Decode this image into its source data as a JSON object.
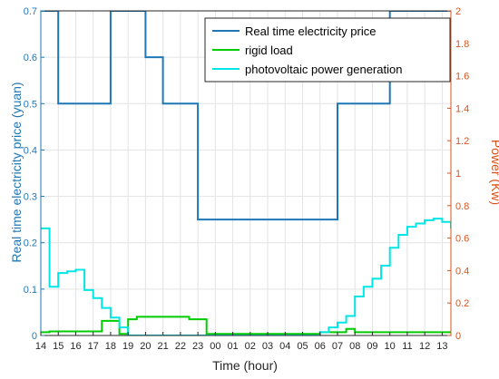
{
  "chart_data": {
    "type": "line",
    "xlabel": "Time (hour)",
    "ylabel_left": "Real time electricity price (yuan)",
    "ylabel_right": "Power (Kw)",
    "x_tick_labels": [
      "14",
      "15",
      "16",
      "17",
      "18",
      "19",
      "20",
      "21",
      "22",
      "23",
      "00",
      "01",
      "02",
      "03",
      "04",
      "05",
      "06",
      "07",
      "08",
      "09",
      "10",
      "11",
      "12",
      "13"
    ],
    "left_ticks": [
      "0",
      "0.1",
      "0.2",
      "0.3",
      "0.4",
      "0.5",
      "0.6",
      "0.7"
    ],
    "right_ticks": [
      "0",
      "0.2",
      "0.4",
      "0.6",
      "0.8",
      "1",
      "1.2",
      "1.4",
      "1.6",
      "1.8",
      "2"
    ],
    "ylim_left": [
      0,
      0.7
    ],
    "ylim_right": [
      0,
      2
    ],
    "grid": true,
    "legend_position": "top-right",
    "colors": {
      "price": "#1f77b4",
      "rigid": "#00cc00",
      "pv": "#00e5e5",
      "left_axis": "#1f77b4",
      "right_axis": "#d95319"
    },
    "series": [
      {
        "name": "Real time electricity price",
        "axis": "left",
        "step": true,
        "x": [
          14.0,
          15.0,
          16.0,
          17.0,
          18.0,
          18.5,
          19.0,
          20.0,
          21.0,
          22.0,
          23.0,
          0.0,
          1.0,
          2.0,
          3.0,
          4.0,
          5.0,
          6.0,
          7.0,
          8.0,
          9.0,
          10.0,
          11.0,
          12.0,
          13.0,
          13.5
        ],
        "values": [
          0.7,
          0.5,
          0.5,
          0.5,
          0.7,
          0.7,
          0.7,
          0.6,
          0.5,
          0.5,
          0.25,
          0.25,
          0.25,
          0.25,
          0.25,
          0.25,
          0.25,
          0.25,
          0.5,
          0.5,
          0.5,
          0.7,
          0.7,
          0.7,
          0.7,
          0.7
        ]
      },
      {
        "name": "rigid load",
        "axis": "right",
        "step": true,
        "x": [
          14.0,
          14.5,
          15.0,
          15.5,
          16.0,
          16.5,
          17.0,
          17.5,
          18.0,
          18.5,
          19.0,
          19.5,
          20.0,
          20.5,
          21.0,
          21.5,
          22.0,
          22.5,
          23.0,
          23.5,
          0.0,
          0.5,
          1.0,
          1.5,
          2.0,
          2.5,
          3.0,
          3.5,
          4.0,
          4.5,
          5.0,
          5.5,
          6.0,
          6.5,
          7.0,
          7.5,
          8.0,
          8.5,
          9.0,
          9.5,
          10.0,
          10.5,
          11.0,
          11.5,
          12.0,
          12.5,
          13.0,
          13.5
        ],
        "values": [
          0.02,
          0.025,
          0.025,
          0.025,
          0.025,
          0.025,
          0.025,
          0.09,
          0.09,
          0.01,
          0.1,
          0.115,
          0.115,
          0.115,
          0.115,
          0.115,
          0.115,
          0.1,
          0.1,
          0.01,
          0.01,
          0.01,
          0.01,
          0.01,
          0.01,
          0.01,
          0.01,
          0.01,
          0.01,
          0.01,
          0.01,
          0.01,
          0.02,
          0.02,
          0.02,
          0.04,
          0.02,
          0.02,
          0.02,
          0.02,
          0.02,
          0.02,
          0.02,
          0.02,
          0.02,
          0.02,
          0.02,
          0.025
        ]
      },
      {
        "name": "photovoltaic power generation",
        "axis": "right",
        "step": true,
        "x": [
          14.0,
          14.5,
          15.0,
          15.5,
          16.0,
          16.5,
          17.0,
          17.5,
          18.0,
          18.5,
          19.0,
          19.5,
          20.0,
          20.5,
          21.0,
          21.5,
          22.0,
          22.5,
          23.0,
          23.5,
          0.0,
          0.5,
          1.0,
          1.5,
          2.0,
          2.5,
          3.0,
          3.5,
          4.0,
          4.5,
          5.0,
          5.5,
          6.0,
          6.5,
          7.0,
          7.5,
          8.0,
          8.5,
          9.0,
          9.5,
          10.0,
          10.5,
          11.0,
          11.5,
          12.0,
          12.5,
          13.0,
          13.5
        ],
        "values": [
          0.66,
          0.3,
          0.385,
          0.395,
          0.405,
          0.28,
          0.23,
          0.17,
          0.11,
          0.05,
          0.0,
          0.0,
          0.0,
          0.0,
          0.0,
          0.0,
          0.0,
          0.0,
          0.0,
          0.0,
          0.0,
          0.0,
          0.0,
          0.0,
          0.0,
          0.0,
          0.0,
          0.0,
          0.0,
          0.0,
          0.0,
          0.0,
          0.02,
          0.05,
          0.08,
          0.12,
          0.24,
          0.3,
          0.35,
          0.43,
          0.54,
          0.62,
          0.67,
          0.69,
          0.71,
          0.72,
          0.7,
          0.66
        ]
      }
    ]
  }
}
